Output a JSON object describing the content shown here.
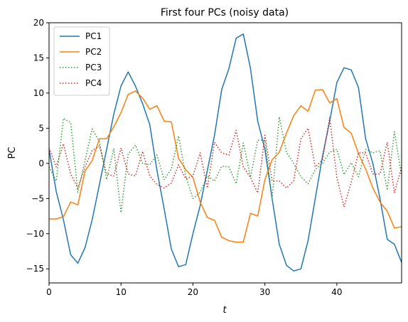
{
  "chart_data": {
    "type": "line",
    "title": "First four PCs (noisy data)",
    "xlabel": "t",
    "ylabel": "PC",
    "xlim": [
      0,
      49
    ],
    "ylim": [
      -17,
      20
    ],
    "xticks": [
      0,
      10,
      20,
      30,
      40
    ],
    "yticks": [
      -15,
      -10,
      -5,
      0,
      5,
      10,
      15,
      20
    ],
    "grid": false,
    "legend_position": "top-left",
    "x": [
      0,
      1,
      2,
      3,
      4,
      5,
      6,
      7,
      8,
      9,
      10,
      11,
      12,
      13,
      14,
      15,
      16,
      17,
      18,
      19,
      20,
      21,
      22,
      23,
      24,
      25,
      26,
      27,
      28,
      29,
      30,
      31,
      32,
      33,
      34,
      35,
      36,
      37,
      38,
      39,
      40,
      41,
      42,
      43,
      44,
      45,
      46,
      47,
      48,
      49
    ],
    "series": [
      {
        "name": "PC1",
        "color": "#1f77b4",
        "style": "solid",
        "values": [
          2.0,
          -4.0,
          -8.0,
          -13.0,
          -14.2,
          -12.0,
          -8.0,
          -3.0,
          2.0,
          7.0,
          11.0,
          13.0,
          11.0,
          8.5,
          5.5,
          -1.0,
          -6.5,
          -12.2,
          -14.7,
          -14.4,
          -10.0,
          -6.0,
          -1.0,
          4.0,
          10.5,
          13.5,
          17.8,
          18.4,
          13.5,
          6.0,
          2.0,
          -5.0,
          -11.5,
          -14.5,
          -15.3,
          -15.0,
          -11.0,
          -5.0,
          1.0,
          6.0,
          11.5,
          13.6,
          13.3,
          10.8,
          3.5,
          0.0,
          -5.0,
          -10.8,
          -11.5,
          -14.1
        ]
      },
      {
        "name": "PC2",
        "color": "#ff7f0e",
        "style": "solid",
        "values": [
          -7.9,
          -7.9,
          -7.6,
          -5.5,
          -5.9,
          -1.1,
          0.4,
          3.5,
          3.5,
          5.2,
          7.2,
          9.8,
          10.3,
          9.3,
          7.7,
          8.2,
          6.0,
          5.9,
          0.7,
          -0.9,
          -2.0,
          -5.5,
          -7.7,
          -8.1,
          -10.5,
          -11.0,
          -11.2,
          -11.2,
          -7.1,
          -7.5,
          -2.3,
          0.5,
          1.6,
          4.3,
          6.8,
          8.2,
          7.4,
          10.4,
          10.5,
          8.6,
          9.2,
          5.1,
          4.3,
          1.4,
          -0.8,
          -3.5,
          -5.5,
          -6.8,
          -9.2,
          -9.0
        ]
      },
      {
        "name": "PC3",
        "color": "#2ca02c",
        "style": "dotted",
        "values": [
          -0.5,
          -2.5,
          6.4,
          5.8,
          -4.1,
          0.4,
          4.9,
          3.1,
          -2.3,
          2.1,
          -7.0,
          1.3,
          2.6,
          0.0,
          -0.2,
          1.2,
          -2.3,
          -0.8,
          3.9,
          -1.8,
          -5.0,
          -4.1,
          -1.8,
          -2.5,
          -0.4,
          -0.5,
          -2.9,
          2.9,
          -2.0,
          3.3,
          3.3,
          -5.0,
          6.6,
          1.6,
          0.0,
          -1.9,
          -2.9,
          -0.9,
          0.0,
          1.6,
          2.0,
          -1.6,
          0.1,
          -1.9,
          2.0,
          1.5,
          1.8,
          -3.8,
          4.5,
          -1.8
        ]
      },
      {
        "name": "PC4",
        "color": "#d62728",
        "style": "dotted",
        "values": [
          2.2,
          -0.5,
          2.8,
          -1.5,
          -3.5,
          -0.5,
          1.8,
          2.5,
          -1.5,
          -1.8,
          2.2,
          -1.5,
          -1.8,
          1.7,
          -1.8,
          -3.0,
          -3.5,
          -2.8,
          -0.2,
          -2.2,
          -1.8,
          1.5,
          -3.5,
          3.0,
          1.5,
          1.2,
          4.7,
          -0.5,
          -2.0,
          -4.2,
          4.0,
          -2.5,
          -2.5,
          -3.5,
          -2.5,
          3.5,
          5.0,
          -0.5,
          0.5,
          6.5,
          -2.0,
          -6.2,
          -2.7,
          1.5,
          1.5,
          -1.5,
          -1.5,
          3.0,
          -4.2,
          -0.5
        ]
      }
    ]
  }
}
